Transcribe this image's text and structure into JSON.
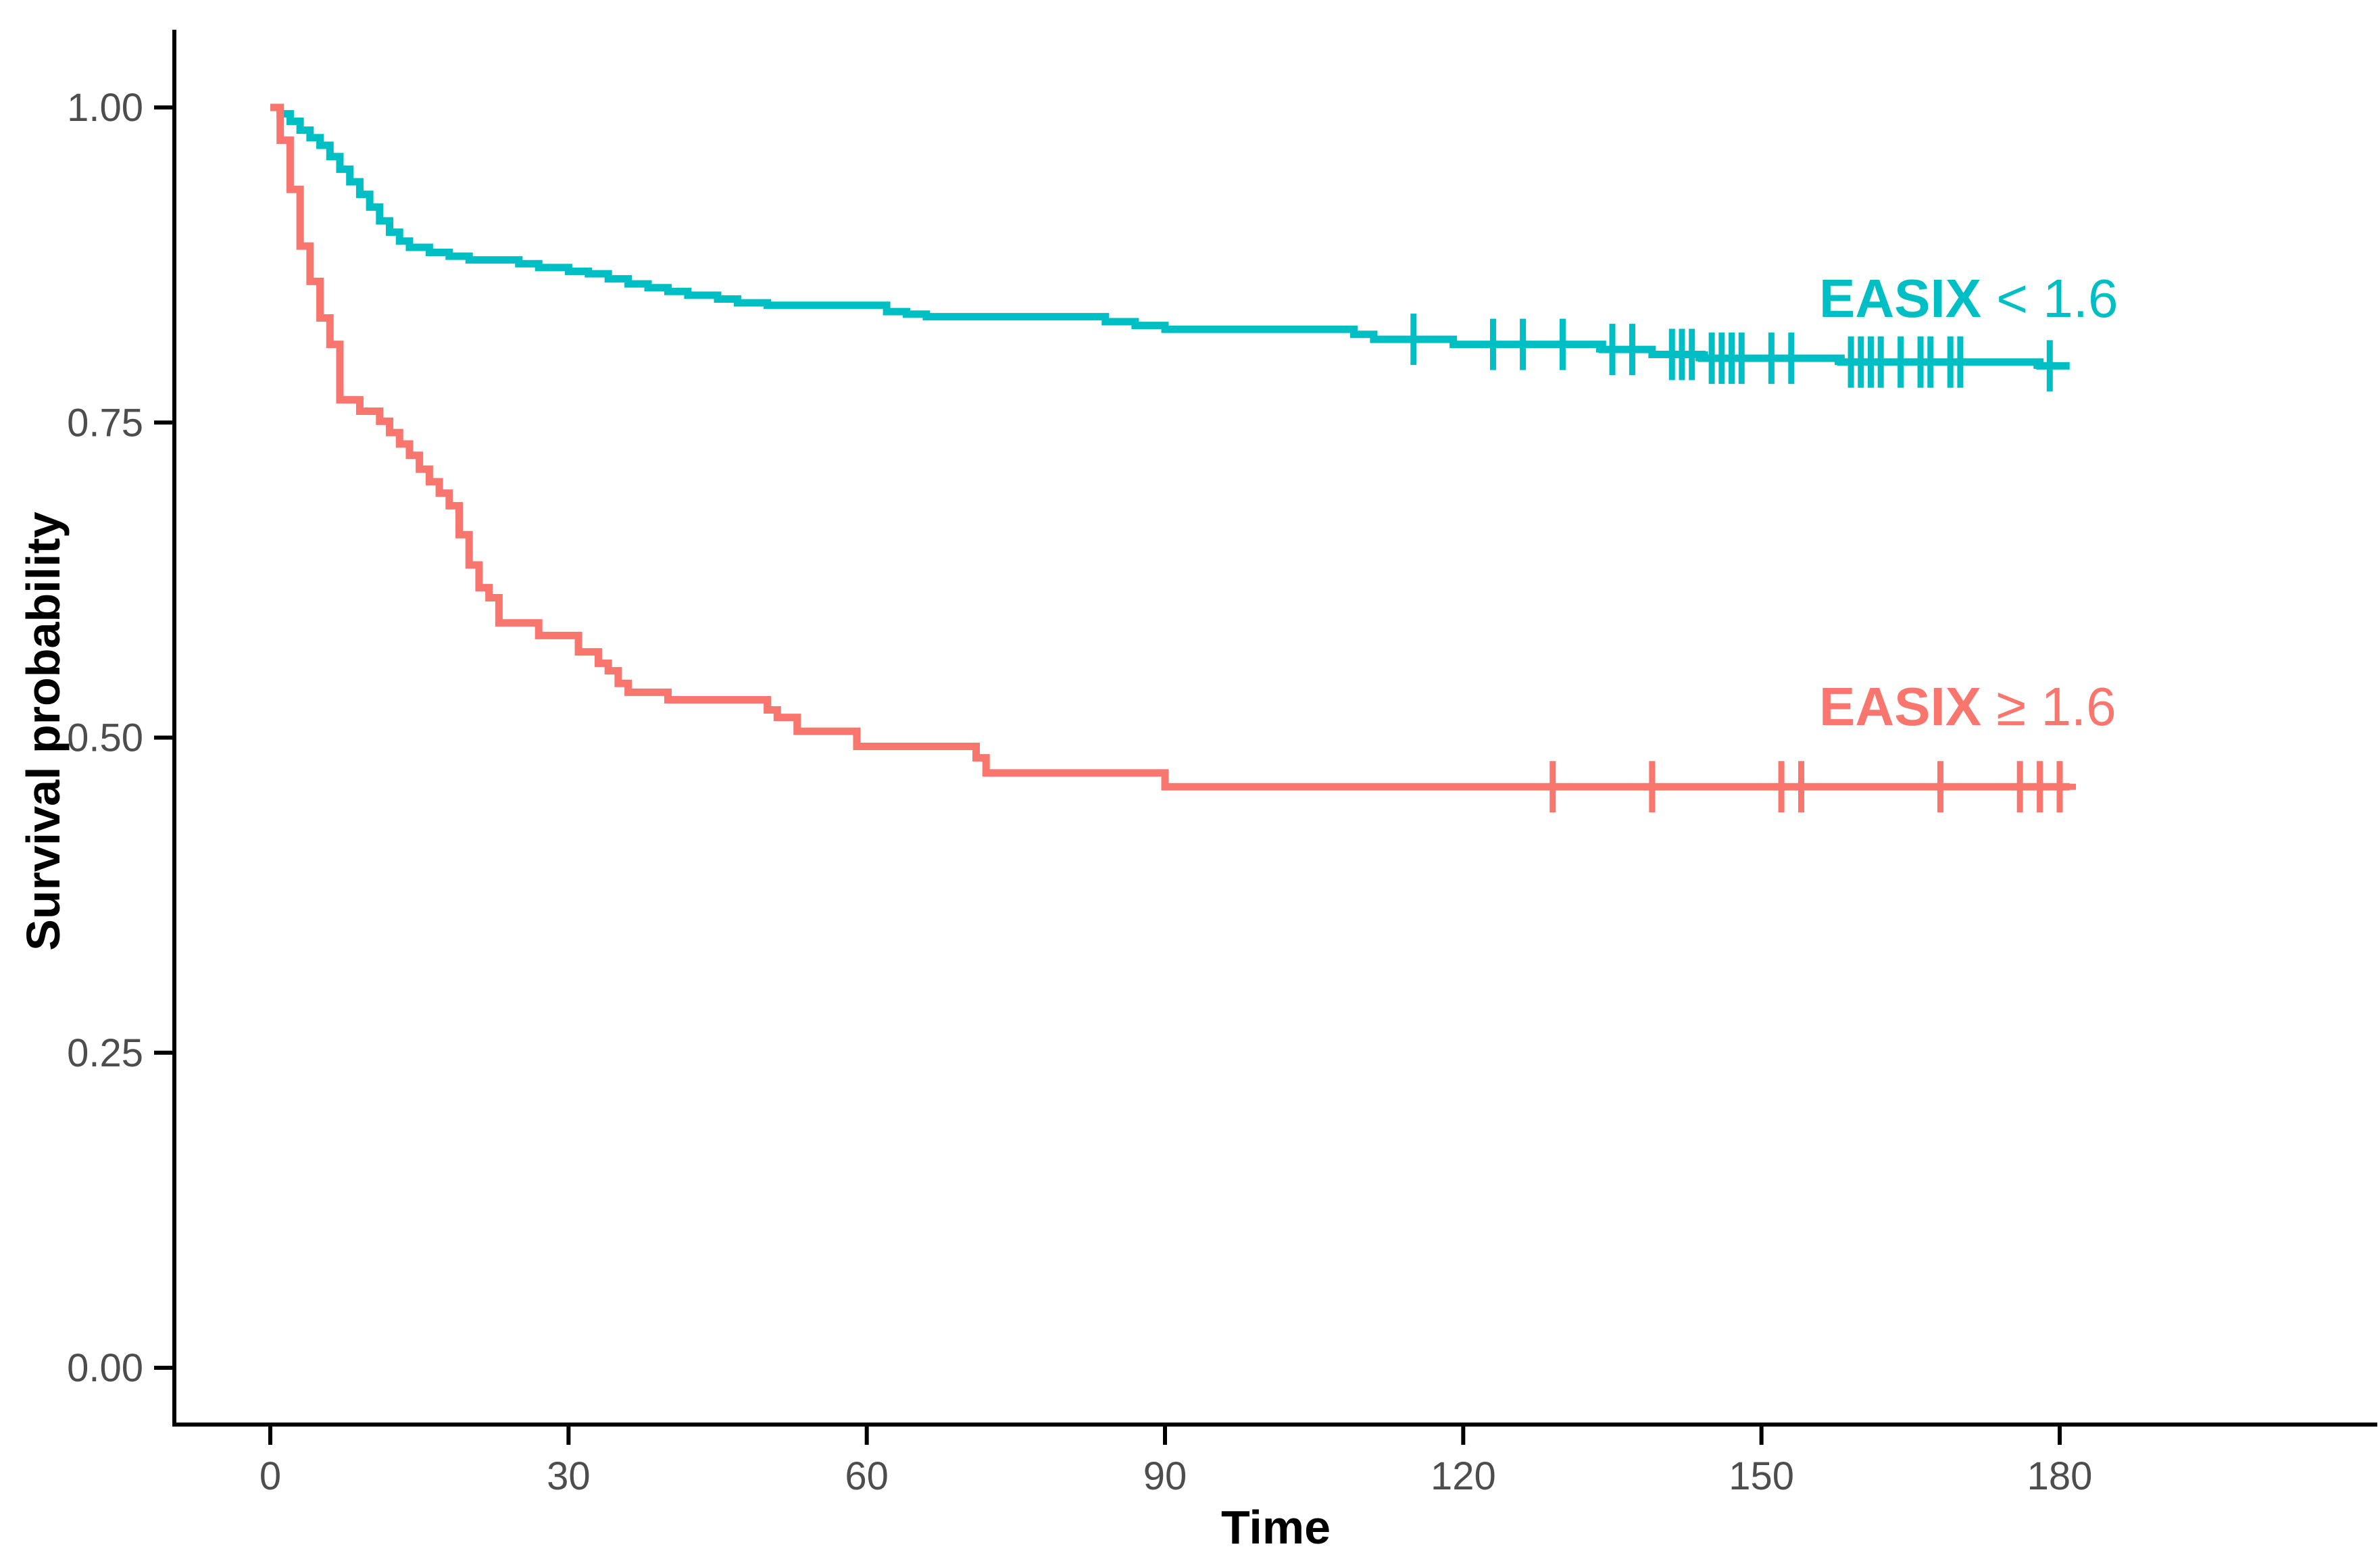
{
  "page": {
    "background_color": "#ffffff",
    "tick_label_color": "#4d4d4d",
    "axis_color": "#000000"
  },
  "chart_data": {
    "type": "line",
    "subtype": "kaplan-meier-step-curves",
    "title": "",
    "xlabel": "Time",
    "ylabel": "Survival probability",
    "xlim": [
      0,
      180
    ],
    "ylim": [
      0.0,
      1.0
    ],
    "grid": false,
    "legend_position": "labels-at-curve-right",
    "x_ticks": [
      0,
      30,
      60,
      90,
      120,
      150,
      180
    ],
    "y_ticks": [
      {
        "value": 1.0,
        "label": "1.00"
      },
      {
        "value": 0.75,
        "label": "0.75"
      },
      {
        "value": 0.5,
        "label": "0.50"
      },
      {
        "value": 0.25,
        "label": "0.25"
      },
      {
        "value": 0.0,
        "label": "0.00"
      }
    ],
    "curve_end_time": 181,
    "series": [
      {
        "key": "easix-lt-1.6",
        "name": "EASIX < 1.6",
        "label_bold": "EASIX",
        "label_rest": " < 1.6",
        "color": "#00BFC4",
        "points": [
          [
            0,
            1.0
          ],
          [
            1,
            0.995
          ],
          [
            2,
            0.989
          ],
          [
            3,
            0.982
          ],
          [
            4,
            0.976
          ],
          [
            5,
            0.97
          ],
          [
            6,
            0.961
          ],
          [
            7,
            0.951
          ],
          [
            8,
            0.941
          ],
          [
            9,
            0.931
          ],
          [
            10,
            0.921
          ],
          [
            11,
            0.91
          ],
          [
            12,
            0.901
          ],
          [
            13,
            0.894
          ],
          [
            14,
            0.889
          ],
          [
            16,
            0.885
          ],
          [
            18,
            0.882
          ],
          [
            20,
            0.879
          ],
          [
            25,
            0.876
          ],
          [
            27,
            0.873
          ],
          [
            30,
            0.87
          ],
          [
            32,
            0.868
          ],
          [
            34,
            0.864
          ],
          [
            36,
            0.86
          ],
          [
            38,
            0.857
          ],
          [
            40,
            0.854
          ],
          [
            42,
            0.851
          ],
          [
            45,
            0.848
          ],
          [
            47,
            0.845
          ],
          [
            50,
            0.843
          ],
          [
            62,
            0.838
          ],
          [
            64,
            0.836
          ],
          [
            66,
            0.834
          ],
          [
            84,
            0.83
          ],
          [
            87,
            0.827
          ],
          [
            90,
            0.824
          ],
          [
            109,
            0.82
          ],
          [
            111,
            0.816
          ],
          [
            119,
            0.812
          ],
          [
            134,
            0.808
          ],
          [
            139,
            0.804
          ],
          [
            144,
            0.801
          ],
          [
            158,
            0.798
          ],
          [
            178,
            0.795
          ]
        ],
        "censor_times": [
          115,
          123,
          126,
          130,
          135,
          137,
          141,
          142,
          143,
          145,
          146,
          147,
          148,
          151,
          153,
          159,
          160,
          161,
          162,
          164,
          166,
          167,
          169,
          170,
          179
        ]
      },
      {
        "key": "easix-ge-1.6",
        "name": "EASIX ≥ 1.6",
        "label_bold": "EASIX",
        "label_rest": " ≥ 1.6",
        "color": "#F8766D",
        "points": [
          [
            0,
            1.0
          ],
          [
            1,
            0.974
          ],
          [
            2,
            0.935
          ],
          [
            3,
            0.89
          ],
          [
            4,
            0.862
          ],
          [
            5,
            0.833
          ],
          [
            6,
            0.812
          ],
          [
            7,
            0.768
          ],
          [
            9,
            0.759
          ],
          [
            11,
            0.751
          ],
          [
            12,
            0.742
          ],
          [
            13,
            0.733
          ],
          [
            14,
            0.724
          ],
          [
            15,
            0.713
          ],
          [
            16,
            0.703
          ],
          [
            17,
            0.694
          ],
          [
            18,
            0.684
          ],
          [
            19,
            0.661
          ],
          [
            20,
            0.637
          ],
          [
            21,
            0.619
          ],
          [
            22,
            0.611
          ],
          [
            23,
            0.591
          ],
          [
            27,
            0.581
          ],
          [
            31,
            0.568
          ],
          [
            33,
            0.559
          ],
          [
            34,
            0.553
          ],
          [
            35,
            0.543
          ],
          [
            36,
            0.536
          ],
          [
            40,
            0.53
          ],
          [
            50,
            0.522
          ],
          [
            51,
            0.516
          ],
          [
            53,
            0.505
          ],
          [
            59,
            0.493
          ],
          [
            71,
            0.484
          ],
          [
            72,
            0.472
          ],
          [
            90,
            0.461
          ]
        ],
        "censor_times": [
          129,
          139,
          152,
          154,
          168,
          176,
          178,
          180
        ]
      }
    ]
  }
}
